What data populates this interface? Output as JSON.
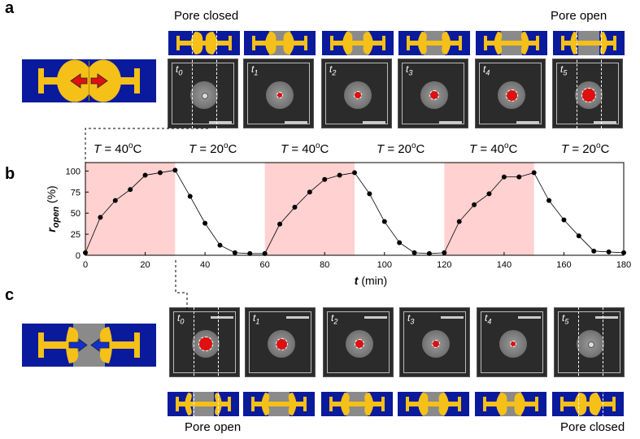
{
  "panels": {
    "a": "a",
    "b": "b",
    "c": "c"
  },
  "panel_a": {
    "left_caption": "Pore closed",
    "right_caption": "Pore open",
    "time_labels": [
      "t0",
      "t1",
      "t2",
      "t3",
      "t4",
      "t5"
    ],
    "red_spot_size": [
      0,
      0.2,
      0.35,
      0.55,
      0.75,
      0.95
    ]
  },
  "panel_c": {
    "left_caption": "Pore open",
    "right_caption": "Pore closed",
    "time_labels": [
      "t0",
      "t1",
      "t2",
      "t3",
      "t4",
      "t5"
    ],
    "red_spot_size": [
      0.95,
      0.75,
      0.55,
      0.35,
      0.2,
      0
    ]
  },
  "temperature_labels": [
    "T = 40oC",
    "T = 20oC",
    "T = 40oC",
    "T = 20oC",
    "T = 40oC",
    "T = 20oC"
  ],
  "colors": {
    "device_blue": "#0a1a9c",
    "gel_yellow": "#f5c018",
    "shade": "#ffd1d1",
    "spot_red": "#e01010",
    "arrow_red": "#e01010",
    "arrow_blue": "#1030d0"
  },
  "chart_data": {
    "type": "scatter",
    "xlabel": "t (min)",
    "ylabel": "r_open (%)",
    "xlim": [
      0,
      180
    ],
    "ylim": [
      0,
      110
    ],
    "xticks": [
      0,
      20,
      40,
      60,
      80,
      100,
      120,
      140,
      160,
      180
    ],
    "yticks": [
      0,
      25,
      50,
      75,
      100
    ],
    "shaded_intervals": [
      [
        0,
        30
      ],
      [
        60,
        90
      ],
      [
        120,
        150
      ]
    ],
    "series": [
      {
        "x": [
          0,
          5,
          10,
          15,
          20,
          25,
          30,
          35,
          40,
          45,
          50,
          55,
          60,
          65,
          70,
          75,
          80,
          85,
          90,
          95,
          100,
          105,
          110,
          115,
          120,
          125,
          130,
          135,
          140,
          145,
          150,
          155,
          160,
          165,
          170,
          175,
          180
        ],
        "y": [
          3,
          45,
          65,
          78,
          95,
          98,
          101,
          70,
          38,
          12,
          3,
          2,
          2,
          37,
          57,
          75,
          90,
          95,
          98,
          73,
          40,
          15,
          3,
          2,
          3,
          40,
          60,
          73,
          93,
          93,
          98,
          65,
          42,
          23,
          5,
          4,
          3
        ]
      }
    ]
  }
}
